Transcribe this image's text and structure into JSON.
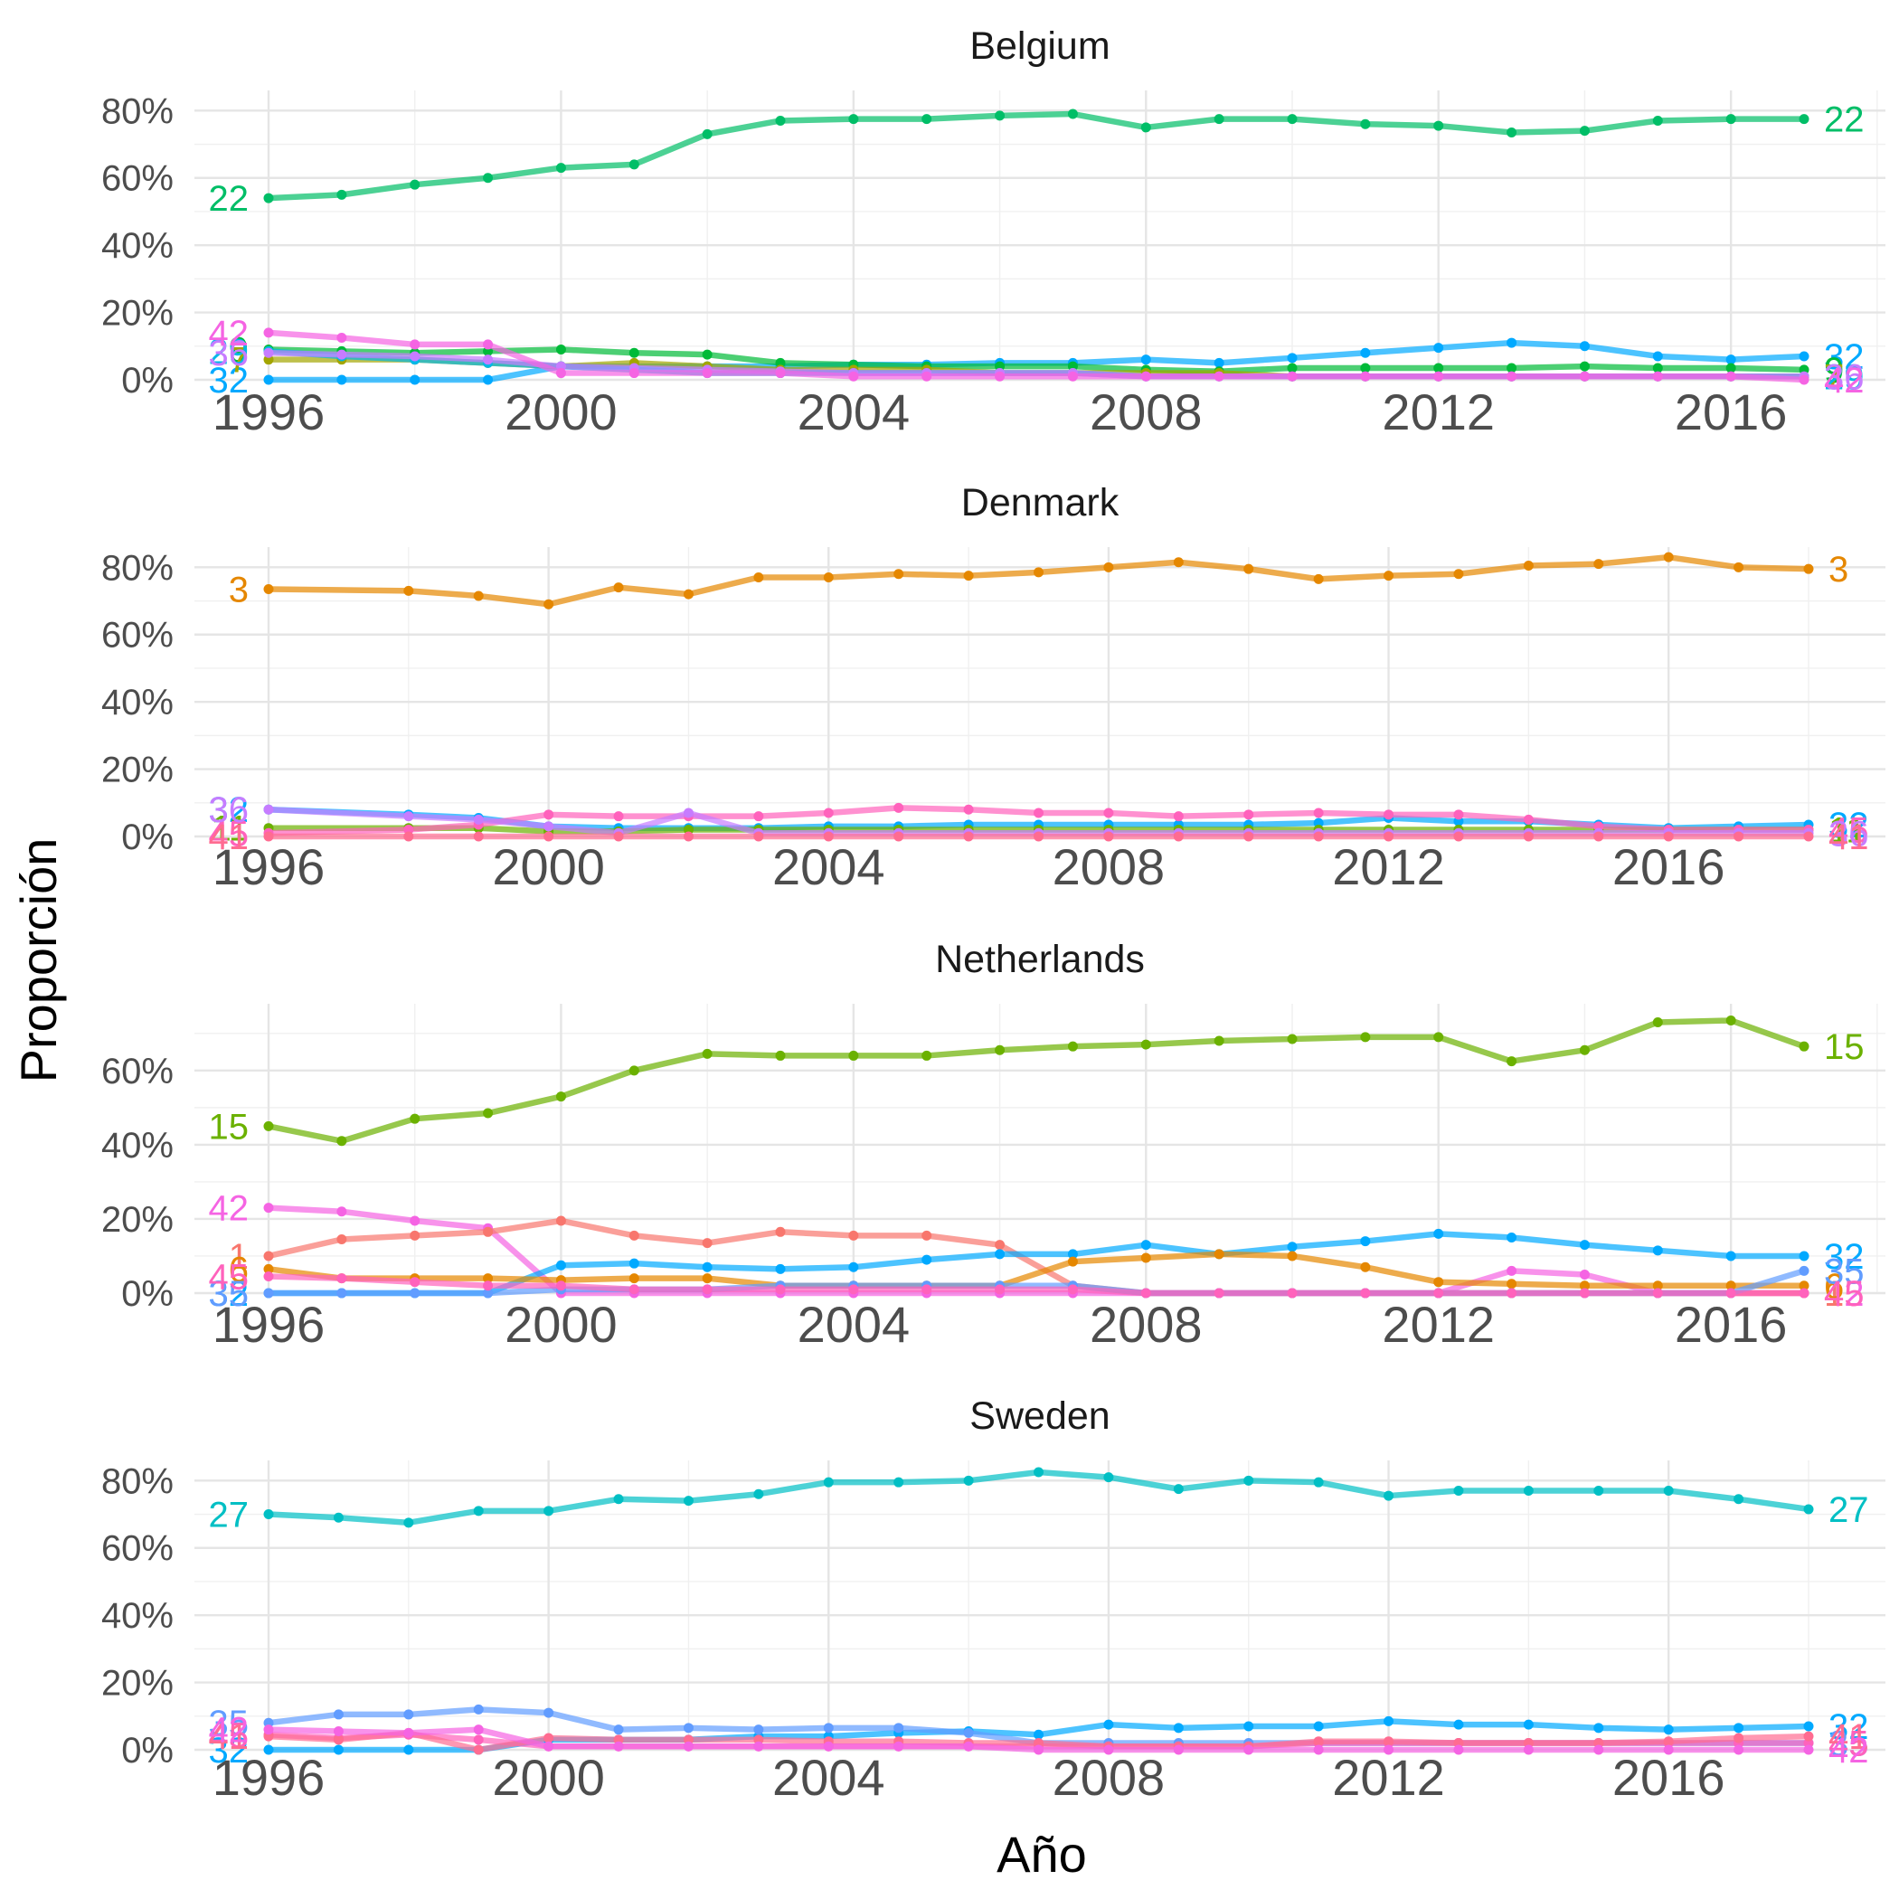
{
  "chart_data": {
    "type": "line",
    "xlabel": "Año",
    "ylabel": "Proporción",
    "x": [
      1996,
      1997,
      1998,
      1999,
      2000,
      2001,
      2002,
      2003,
      2004,
      2005,
      2006,
      2007,
      2008,
      2009,
      2010,
      2011,
      2012,
      2013,
      2014,
      2015,
      2016,
      2017,
      2018
    ],
    "x_ticks": [
      "1996",
      "2000",
      "2004",
      "2008",
      "2012",
      "2016"
    ],
    "y_ticks": [
      "0%",
      "20%",
      "40%",
      "60%",
      "80%"
    ],
    "grid": true,
    "legend": "none (series labelled at line ends)",
    "panels": [
      {
        "title": "Belgium",
        "x_range": [
          1996,
          2017
        ],
        "ylim": [
          0,
          0.86
        ],
        "series": [
          {
            "name": "22",
            "color": "#00BE67",
            "values": [
              0.54,
              0.55,
              0.58,
              0.6,
              0.63,
              0.64,
              0.73,
              0.77,
              0.775,
              0.775,
              0.785,
              0.79,
              0.75,
              0.775,
              0.775,
              0.76,
              0.755,
              0.735,
              0.74,
              0.77,
              0.775,
              0.775
            ]
          },
          {
            "name": "32",
            "color": "#00A9FF",
            "values": [
              0.0,
              0.0,
              0.0,
              0.0,
              0.04,
              0.04,
              0.04,
              0.04,
              0.045,
              0.045,
              0.05,
              0.05,
              0.06,
              0.05,
              0.065,
              0.08,
              0.095,
              0.11,
              0.1,
              0.07,
              0.06,
              0.07
            ]
          },
          {
            "name": "9",
            "color": "#00BA38",
            "values": [
              0.09,
              0.085,
              0.08,
              0.085,
              0.09,
              0.08,
              0.075,
              0.05,
              0.045,
              0.04,
              0.04,
              0.04,
              0.03,
              0.025,
              0.035,
              0.035,
              0.035,
              0.035,
              0.04,
              0.035,
              0.035,
              0.03
            ]
          },
          {
            "name": "7",
            "color": "#A3A500",
            "values": [
              0.06,
              0.06,
              0.06,
              0.05,
              0.04,
              0.05,
              0.04,
              0.03,
              0.03,
              0.03,
              0.02,
              0.02,
              0.02,
              0.02,
              0.01,
              0.01,
              0.01,
              0.01,
              0.01,
              0.01,
              0.01,
              0.01
            ]
          },
          {
            "name": "29",
            "color": "#00B8E7",
            "values": [
              0.085,
              0.07,
              0.06,
              0.05,
              0.04,
              0.03,
              0.02,
              0.02,
              0.02,
              0.02,
              0.02,
              0.02,
              0.01,
              0.01,
              0.01,
              0.01,
              0.01,
              0.01,
              0.01,
              0.01,
              0.01,
              0.01
            ]
          },
          {
            "name": "36",
            "color": "#C77CFF",
            "values": [
              0.08,
              0.075,
              0.07,
              0.06,
              0.04,
              0.035,
              0.03,
              0.025,
              0.02,
              0.02,
              0.02,
              0.02,
              0.01,
              0.01,
              0.01,
              0.01,
              0.01,
              0.01,
              0.01,
              0.01,
              0.01,
              0.01
            ]
          },
          {
            "name": "42",
            "color": "#F564E3",
            "values": [
              0.14,
              0.125,
              0.105,
              0.105,
              0.02,
              0.02,
              0.02,
              0.02,
              0.01,
              0.01,
              0.01,
              0.01,
              0.01,
              0.01,
              0.01,
              0.01,
              0.01,
              0.01,
              0.01,
              0.01,
              0.01,
              0.0
            ]
          }
        ]
      },
      {
        "title": "Denmark",
        "x_range": [
          1996,
          2018
        ],
        "ylim": [
          0,
          0.86
        ],
        "series": [
          {
            "name": "3",
            "color": "#E58700",
            "values": [
              0.735,
              null,
              0.73,
              0.715,
              0.69,
              0.74,
              0.72,
              0.77,
              0.77,
              0.78,
              0.775,
              0.785,
              0.8,
              0.815,
              0.795,
              0.765,
              0.775,
              0.78,
              0.805,
              0.81,
              0.83,
              0.8,
              0.795
            ]
          },
          {
            "name": "32",
            "color": "#00A9FF",
            "values": [
              0.08,
              null,
              0.065,
              0.055,
              0.03,
              0.025,
              0.025,
              0.025,
              0.03,
              0.03,
              0.035,
              0.035,
              0.035,
              0.035,
              0.035,
              0.04,
              0.055,
              0.045,
              0.045,
              0.035,
              0.025,
              0.03,
              0.035
            ]
          },
          {
            "name": "11",
            "color": "#6BB100",
            "values": [
              0.025,
              null,
              0.025,
              0.025,
              0.015,
              0.015,
              0.02,
              0.02,
              0.02,
              0.02,
              0.02,
              0.02,
              0.02,
              0.02,
              0.02,
              0.02,
              0.02,
              0.02,
              0.02,
              0.02,
              0.02,
              0.02,
              0.02
            ]
          },
          {
            "name": "45",
            "color": "#FF62BC",
            "values": [
              0.01,
              null,
              0.02,
              0.035,
              0.065,
              0.06,
              0.06,
              0.06,
              0.07,
              0.085,
              0.08,
              0.07,
              0.07,
              0.06,
              0.065,
              0.07,
              0.065,
              0.065,
              0.05,
              0.03,
              0.02,
              0.02,
              0.02
            ]
          },
          {
            "name": "36",
            "color": "#C77CFF",
            "values": [
              0.08,
              null,
              0.06,
              0.05,
              0.03,
              0.01,
              0.07,
              0.01,
              0.01,
              0.01,
              0.01,
              0.01,
              0.01,
              0.01,
              0.01,
              0.01,
              0.01,
              0.01,
              0.01,
              0.01,
              0.01,
              0.01,
              0.01
            ]
          },
          {
            "name": "41",
            "color": "#FF6C91",
            "values": [
              0.0,
              null,
              0.0,
              0.0,
              0.0,
              0.0,
              0.0,
              0.0,
              0.0,
              0.0,
              0.0,
              0.0,
              0.0,
              0.0,
              0.0,
              0.0,
              0.0,
              0.0,
              0.0,
              0.0,
              0.0,
              0.0,
              0.0
            ]
          }
        ]
      },
      {
        "title": "Netherlands",
        "x_range": [
          1996,
          2017
        ],
        "ylim": [
          0,
          0.78
        ],
        "series": [
          {
            "name": "15",
            "color": "#6BB100",
            "values": [
              0.45,
              0.41,
              0.47,
              0.485,
              0.53,
              0.6,
              0.645,
              0.64,
              0.64,
              0.64,
              0.655,
              0.665,
              0.67,
              0.68,
              0.685,
              0.69,
              0.69,
              0.625,
              0.655,
              0.73,
              0.735,
              0.665
            ]
          },
          {
            "name": "42",
            "color": "#F564E3",
            "values": [
              0.23,
              0.22,
              0.195,
              0.175,
              0.0,
              0.0,
              0.0,
              0.0,
              0.0,
              0.0,
              0.0,
              0.0,
              0.0,
              0.0,
              0.0,
              0.0,
              0.0,
              0.06,
              0.05,
              0.0,
              0.0,
              0.0
            ]
          },
          {
            "name": "1",
            "color": "#F8766D",
            "values": [
              0.1,
              0.145,
              0.155,
              0.165,
              0.195,
              0.155,
              0.135,
              0.165,
              0.155,
              0.155,
              0.13,
              0.02,
              0.0,
              0.0,
              0.0,
              0.0,
              0.0,
              0.0,
              0.0,
              0.0,
              0.0,
              0.0
            ]
          },
          {
            "name": "32",
            "color": "#00A9FF",
            "values": [
              0.0,
              0.0,
              0.0,
              0.0,
              0.075,
              0.08,
              0.07,
              0.065,
              0.07,
              0.09,
              0.105,
              0.105,
              0.13,
              0.105,
              0.125,
              0.14,
              0.16,
              0.15,
              0.13,
              0.115,
              0.1,
              0.1
            ]
          },
          {
            "name": "6",
            "color": "#E58700",
            "values": [
              0.065,
              0.04,
              0.04,
              0.04,
              0.035,
              0.04,
              0.04,
              0.02,
              0.02,
              0.02,
              0.02,
              0.085,
              0.095,
              0.105,
              0.1,
              0.07,
              0.03,
              0.025,
              0.02,
              0.02,
              0.02,
              0.02
            ]
          },
          {
            "name": "35",
            "color": "#619CFF",
            "values": [
              0.0,
              0.0,
              0.0,
              0.0,
              0.01,
              0.01,
              0.01,
              0.02,
              0.02,
              0.02,
              0.02,
              0.02,
              0.0,
              0.0,
              0.0,
              0.0,
              0.0,
              0.0,
              0.0,
              0.0,
              0.0,
              0.06
            ]
          },
          {
            "name": "45",
            "color": "#FF62BC",
            "values": [
              0.045,
              0.04,
              0.03,
              0.02,
              0.02,
              0.01,
              0.01,
              0.01,
              0.01,
              0.01,
              0.01,
              0.01,
              0.0,
              0.0,
              0.0,
              0.0,
              0.0,
              0.0,
              0.0,
              0.0,
              0.0,
              0.0
            ]
          }
        ]
      },
      {
        "title": "Sweden",
        "x_range": [
          1996,
          2018
        ],
        "ylim": [
          0,
          0.86
        ],
        "series": [
          {
            "name": "27",
            "color": "#00BFC4",
            "values": [
              0.7,
              0.69,
              0.675,
              0.71,
              0.71,
              0.745,
              0.74,
              0.76,
              0.795,
              0.795,
              0.8,
              0.825,
              0.81,
              0.775,
              0.8,
              0.795,
              0.755,
              0.77,
              0.77,
              0.77,
              0.77,
              0.745,
              0.715
            ]
          },
          {
            "name": "32",
            "color": "#00A9FF",
            "values": [
              0.0,
              0.0,
              0.0,
              0.0,
              0.03,
              0.03,
              0.03,
              0.04,
              0.04,
              0.05,
              0.055,
              0.045,
              0.075,
              0.065,
              0.07,
              0.07,
              0.085,
              0.075,
              0.075,
              0.065,
              0.06,
              0.065,
              0.07
            ]
          },
          {
            "name": "35",
            "color": "#619CFF",
            "values": [
              0.08,
              0.105,
              0.105,
              0.12,
              0.11,
              0.06,
              0.065,
              0.06,
              0.065,
              0.065,
              0.05,
              0.02,
              0.02,
              0.02,
              0.02,
              0.02,
              0.02,
              0.02,
              0.02,
              0.02,
              0.02,
              0.02,
              0.02
            ]
          },
          {
            "name": "45",
            "color": "#FF62BC",
            "values": [
              0.045,
              0.035,
              0.045,
              0.03,
              0.01,
              0.01,
              0.01,
              0.01,
              0.01,
              0.01,
              0.01,
              0.01,
              0.01,
              0.01,
              0.01,
              0.02,
              0.02,
              0.02,
              0.02,
              0.02,
              0.02,
              0.02,
              0.02
            ]
          },
          {
            "name": "41",
            "color": "#FF6C91",
            "values": [
              0.04,
              0.03,
              0.05,
              0.0,
              0.035,
              0.03,
              0.03,
              0.03,
              0.025,
              0.025,
              0.02,
              0.02,
              0.01,
              0.01,
              0.01,
              0.025,
              0.025,
              0.02,
              0.02,
              0.02,
              0.025,
              0.035,
              0.04
            ]
          },
          {
            "name": "42",
            "color": "#F564E3",
            "values": [
              0.06,
              0.055,
              0.05,
              0.06,
              0.01,
              0.01,
              0.01,
              0.01,
              0.01,
              0.01,
              0.01,
              0.0,
              0.0,
              0.0,
              0.0,
              0.0,
              0.0,
              0.0,
              0.0,
              0.0,
              0.0,
              0.0,
              0.0
            ]
          }
        ]
      }
    ]
  }
}
